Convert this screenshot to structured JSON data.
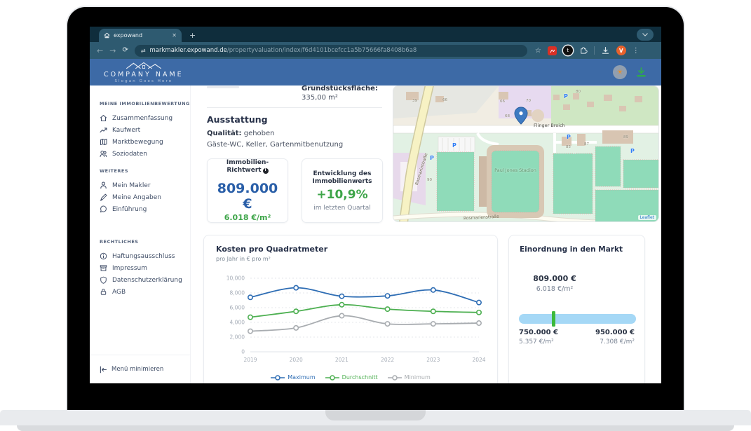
{
  "browser": {
    "tab_title": "expowand",
    "url_domain": "markmakler.expowand.de",
    "url_path": "/propertyvaluation/index/f6d4101bcefcc1a5b75666fa8408b6a8",
    "avatar_letter": "V",
    "ext_badge_letter": "t"
  },
  "header": {
    "company_name": "COMPANY NAME",
    "slogan": "Slogan Goes Here"
  },
  "sidebar": {
    "sections": [
      {
        "heading": "MEINE IMMOBILIENBEWERTUNG",
        "items": [
          {
            "label": "Zusammenfassung"
          },
          {
            "label": "Kaufwert"
          },
          {
            "label": "Marktbewegung"
          },
          {
            "label": "Soziodaten"
          }
        ]
      },
      {
        "heading": "WEITERES",
        "items": [
          {
            "label": "Mein Makler"
          },
          {
            "label": "Meine Angaben"
          },
          {
            "label": "Einführung"
          }
        ]
      },
      {
        "heading": "RECHTLICHES",
        "items": [
          {
            "label": "Haftungsausschluss"
          },
          {
            "label": "Impressum"
          },
          {
            "label": "Datenschutzerklärung"
          },
          {
            "label": "AGB"
          }
        ]
      }
    ],
    "collapse_label": "Menü minimieren"
  },
  "property": {
    "plot_area_label": "Grundstücksfläche:",
    "plot_area_value": "335,00 m²",
    "equipment_title": "Ausstattung",
    "quality_label": "Qualität:",
    "quality_value": "gehoben",
    "features": "Gäste-WC, Keller, Gartenmitbenutzung"
  },
  "kpi": {
    "richtwert_title_line1": "Immobilien-",
    "richtwert_title_line2": "Richtwert",
    "richtwert_value": "809.000 €",
    "richtwert_per_sqm": "6.018 €/m²",
    "entwicklung_title_line1": "Entwicklung des",
    "entwicklung_title_line2": "Immobilienwerts",
    "entwicklung_value": "+10,9%",
    "entwicklung_caption": "im letzten Quartal"
  },
  "map": {
    "street_main": "Flinger Broich",
    "street_left": "Rosmarinstraße",
    "street_bottom": "Rosmarienstraße",
    "stadium_label": "Paul Jones Stadion",
    "attribution": "Leaflet",
    "parking_letter": "P",
    "house_numbers": [
      "39",
      "66",
      "66",
      "70",
      "68",
      "80",
      "85",
      "87",
      "89",
      "90"
    ]
  },
  "chart_data": {
    "type": "line",
    "title": "Kosten pro Quadratmeter",
    "subtitle": "pro Jahr in € pro m²",
    "x": [
      "2019",
      "2020",
      "2021",
      "2022",
      "2023",
      "2024"
    ],
    "series": [
      {
        "name": "Maximum",
        "color": "#2e6db4",
        "values": [
          7400,
          8700,
          7550,
          7600,
          8400,
          6700
        ]
      },
      {
        "name": "Durchschnitt",
        "color": "#4caf50",
        "values": [
          4700,
          5500,
          6400,
          5800,
          5500,
          5350
        ]
      },
      {
        "name": "Minimum",
        "color": "#a8acb0",
        "values": [
          2800,
          3250,
          4900,
          3800,
          3800,
          3900
        ]
      }
    ],
    "ylim": [
      0,
      10000
    ],
    "yticks": [
      {
        "v": 0,
        "label": "0"
      },
      {
        "v": 2000,
        "label": "2,000"
      },
      {
        "v": 4000,
        "label": "4,000"
      },
      {
        "v": 6000,
        "label": "6,000"
      },
      {
        "v": 8000,
        "label": "8,000"
      },
      {
        "v": 10000,
        "label": "10,000"
      }
    ],
    "grid": true,
    "legend_position": "bottom"
  },
  "market": {
    "title": "Einordnung in den Markt",
    "current_value": "809.000 €",
    "current_per_sqm": "6.018 €/m²",
    "min_value": "750.000 €",
    "min_per_sqm": "5.357 €/m²",
    "max_value": "950.000 €",
    "max_per_sqm": "7.308 €/m²",
    "marker_position_pct": 29.5,
    "bar_color": "#a5d8f6",
    "marker_color": "#3dba3d"
  }
}
